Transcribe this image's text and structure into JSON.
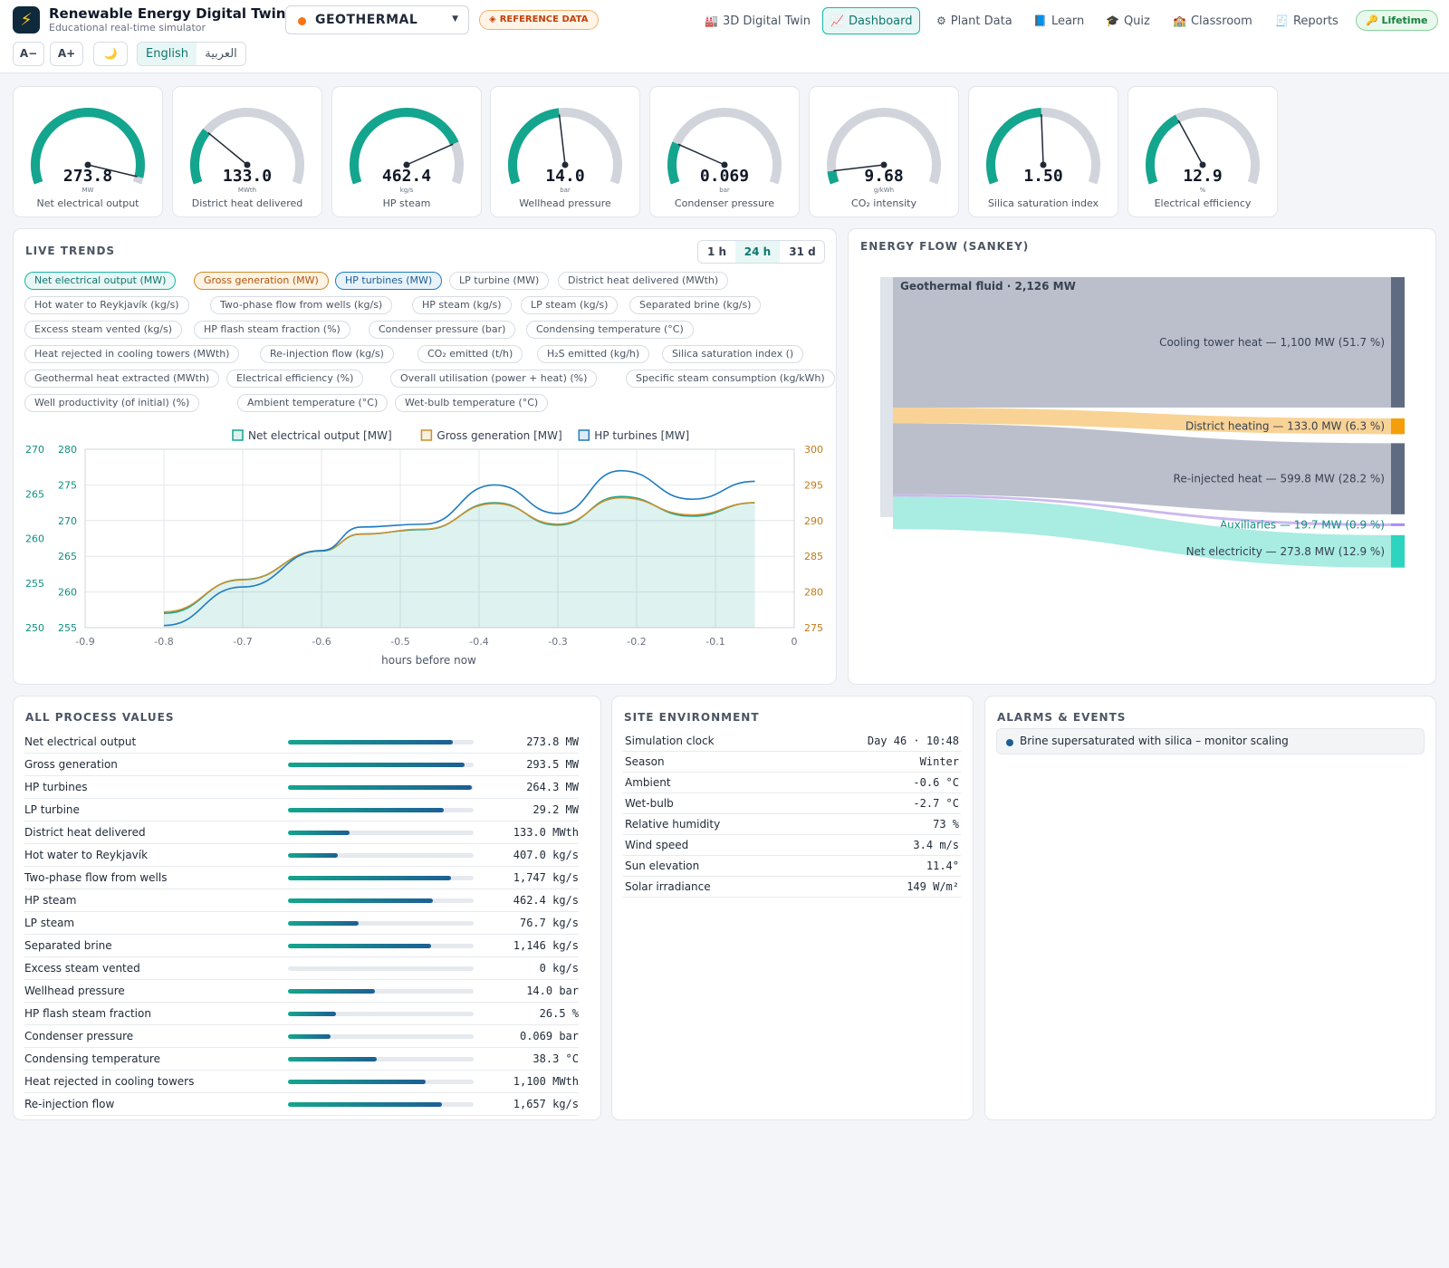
{
  "header": {
    "title": "Renewable Energy Digital Twin",
    "subtitle": "Educational real-time simulator",
    "plant": "GEOTHERMAL",
    "ref_badge": "REFERENCE DATA",
    "nav": [
      {
        "icon": "🏭",
        "label": "3D Digital Twin"
      },
      {
        "icon": "📈",
        "label": "Dashboard"
      },
      {
        "icon": "⚙",
        "label": "Plant Data"
      },
      {
        "icon": "📘",
        "label": "Learn"
      },
      {
        "icon": "🎓",
        "label": "Quiz"
      },
      {
        "icon": "🏫",
        "label": "Classroom"
      },
      {
        "icon": "🧾",
        "label": "Reports"
      }
    ],
    "lifetime": "🔑 Lifetime",
    "font_minus": "A−",
    "font_plus": "A+",
    "theme_icon": "🌙",
    "lang_en": "English",
    "lang_ar": "العربية"
  },
  "gauges": [
    {
      "value": "273.8",
      "unit": "MW",
      "label": "Net electrical output",
      "level": 0.97
    },
    {
      "value": "133.0",
      "unit": "MWth",
      "label": "District heat delivered",
      "level": 0.27
    },
    {
      "value": "462.4",
      "unit": "kg/s",
      "label": "HP steam",
      "level": 0.8
    },
    {
      "value": "14.0",
      "unit": "bar",
      "label": "Wellhead pressure",
      "level": 0.47
    },
    {
      "value": "0.069",
      "unit": "bar",
      "label": "Condenser pressure",
      "level": 0.2
    },
    {
      "value": "9.68",
      "unit": "g/kWh",
      "label": "CO₂ intensity",
      "level": 0.06
    },
    {
      "value": "1.50",
      "unit": "",
      "label": "Silica saturation index",
      "level": 0.49
    },
    {
      "value": "12.9",
      "unit": "%",
      "label": "Electrical efficiency",
      "level": 0.37
    }
  ],
  "trends": {
    "title": "LIVE TRENDS",
    "ranges": [
      "1 h",
      "24 h",
      "31 d"
    ],
    "active_range": "24 h",
    "chips": [
      "Net electrical output (MW)",
      "Gross generation (MW)",
      "HP turbines (MW)",
      "LP turbine (MW)",
      "District heat delivered (MWth)",
      "Hot water to Reykjavík (kg/s)",
      "Two-phase flow from wells (kg/s)",
      "HP steam (kg/s)",
      "LP steam (kg/s)",
      "Separated brine (kg/s)",
      "Excess steam vented (kg/s)",
      "HP flash steam fraction (%)",
      "Condenser pressure (bar)",
      "Condensing temperature (°C)",
      "Heat rejected in cooling towers (MWth)",
      "Re-injection flow (kg/s)",
      "CO₂ emitted (t/h)",
      "H₂S emitted (kg/h)",
      "Silica saturation index ()",
      "Geothermal heat extracted (MWth)",
      "Electrical efficiency (%)",
      "Overall utilisation (power + heat) (%)",
      "Specific steam consumption (kg/kWh)",
      "Well productivity (of initial) (%)",
      "Ambient temperature (°C)",
      "Wet-bulb temperature (°C)"
    ]
  },
  "chart_data": {
    "type": "line",
    "xlabel": "hours before now",
    "xlim": [
      -0.9,
      0
    ],
    "x_ticks": [
      "-0.9",
      "-0.8",
      "-0.7",
      "-0.6",
      "-0.5",
      "-0.4",
      "-0.3",
      "-0.2",
      "-0.1",
      "0"
    ],
    "axes": {
      "outer_left": {
        "color": "#0d8f80",
        "ticks": [
          "270",
          "265",
          "260",
          "255",
          "250"
        ],
        "range": [
          250,
          270
        ]
      },
      "inner_left": {
        "color": "#0d8f80",
        "ticks": [
          "280",
          "275",
          "270",
          "265",
          "260",
          "255"
        ],
        "range": [
          255,
          280
        ]
      },
      "right": {
        "color": "#c07a1a",
        "ticks": [
          "300",
          "295",
          "290",
          "285",
          "280",
          "275"
        ],
        "range": [
          275,
          300
        ]
      }
    },
    "x": [
      -0.8,
      -0.7,
      -0.6,
      -0.55,
      -0.47,
      -0.38,
      -0.3,
      -0.22,
      -0.13,
      -0.05
    ],
    "series": [
      {
        "name": "Net electrical output [MW]",
        "color": "#14a58e",
        "axis": "outer_left",
        "fill": true,
        "values": [
          251.6,
          255.4,
          258.6,
          260.5,
          261.0,
          264.0,
          261.5,
          264.7,
          262.5,
          264.0
        ]
      },
      {
        "name": "Gross generation [MW]",
        "color": "#c9912e",
        "axis": "right",
        "values": [
          277.2,
          281.7,
          285.8,
          288.1,
          288.8,
          292.4,
          289.5,
          293.2,
          290.8,
          292.5
        ]
      },
      {
        "name": "HP turbines [MW]",
        "color": "#1f7cbf",
        "axis": "inner_left",
        "values": [
          255.3,
          260.7,
          265.8,
          269.1,
          269.5,
          275.0,
          271.0,
          277.0,
          273.0,
          275.5
        ]
      }
    ]
  },
  "sankey": {
    "title": "ENERGY FLOW (SANKEY)",
    "source": "Geothermal fluid · 2,126 MW",
    "flows": [
      {
        "label": "Cooling tower heat — 1,100 MW (51.7 %)",
        "mw": 1100,
        "color": "#b7bcc9",
        "node": "#5f6b80"
      },
      {
        "label": "District heating — 133.0 MW (6.3 %)",
        "mw": 133.0,
        "color": "#f9d18f",
        "node": "#f59e0b"
      },
      {
        "label": "Re-injected heat — 599.8 MW (28.2 %)",
        "mw": 599.8,
        "color": "#b7bcc9",
        "node": "#5f6b80"
      },
      {
        "label": "Auxiliaries — 19.7 MW (0.9 %)",
        "mw": 19.7,
        "color": "#c8b4ee",
        "node": "#a78bfa",
        "text_color": "#0d8f80"
      },
      {
        "label": "Net electricity — 273.8 MW (12.9 %)",
        "mw": 273.8,
        "color": "#a3ebe0",
        "node": "#2dd4bf"
      }
    ]
  },
  "process": {
    "title": "ALL PROCESS VALUES",
    "rows": [
      {
        "name": "Net electrical output",
        "value": "273.8 MW",
        "level": 0.89
      },
      {
        "name": "Gross generation",
        "value": "293.5 MW",
        "level": 0.95
      },
      {
        "name": "HP turbines",
        "value": "264.3 MW",
        "level": 0.99
      },
      {
        "name": "LP turbine",
        "value": "29.2 MW",
        "level": 0.84
      },
      {
        "name": "District heat delivered",
        "value": "133.0 MWth",
        "level": 0.33
      },
      {
        "name": "Hot water to Reykjavík",
        "value": "407.0 kg/s",
        "level": 0.27
      },
      {
        "name": "Two-phase flow from wells",
        "value": "1,747 kg/s",
        "level": 0.88
      },
      {
        "name": "HP steam",
        "value": "462.4 kg/s",
        "level": 0.78
      },
      {
        "name": "LP steam",
        "value": "76.7 kg/s",
        "level": 0.38
      },
      {
        "name": "Separated brine",
        "value": "1,146 kg/s",
        "level": 0.77
      },
      {
        "name": "Excess steam vented",
        "value": "0 kg/s",
        "level": 0.0
      },
      {
        "name": "Wellhead pressure",
        "value": "14.0 bar",
        "level": 0.47
      },
      {
        "name": "HP flash steam fraction",
        "value": "26.5 %",
        "level": 0.26
      },
      {
        "name": "Condenser pressure",
        "value": "0.069 bar",
        "level": 0.23
      },
      {
        "name": "Condensing temperature",
        "value": "38.3 °C",
        "level": 0.48
      },
      {
        "name": "Heat rejected in cooling towers",
        "value": "1,100 MWth",
        "level": 0.74
      },
      {
        "name": "Re-injection flow",
        "value": "1,657 kg/s",
        "level": 0.83
      }
    ]
  },
  "environment": {
    "title": "SITE ENVIRONMENT",
    "rows": [
      {
        "name": "Simulation clock",
        "value": "Day 46 · 10:48"
      },
      {
        "name": "Season",
        "value": "Winter"
      },
      {
        "name": "Ambient",
        "value": "-0.6 °C"
      },
      {
        "name": "Wet-bulb",
        "value": "-2.7 °C"
      },
      {
        "name": "Relative humidity",
        "value": "73 %"
      },
      {
        "name": "Wind speed",
        "value": "3.4 m/s"
      },
      {
        "name": "Sun elevation",
        "value": "11.4°"
      },
      {
        "name": "Solar irradiance",
        "value": "149 W/m²"
      }
    ]
  },
  "alarms": {
    "title": "ALARMS & EVENTS",
    "items": [
      "Brine supersaturated with silica – monitor scaling"
    ]
  }
}
